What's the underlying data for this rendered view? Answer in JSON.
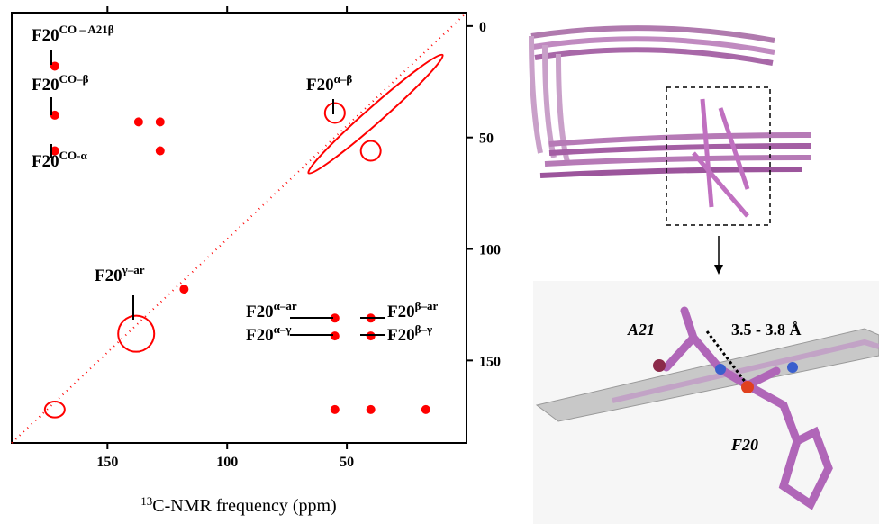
{
  "chart_data": {
    "type": "contour",
    "xlabel": {
      "sup": "13",
      "text": "C-NMR frequency (ppm)"
    },
    "xlim": [
      190,
      0
    ],
    "ylim": [
      -6,
      187
    ],
    "xticks": [
      150,
      100,
      50
    ],
    "yticks": [
      0,
      50,
      100,
      150
    ],
    "color": "#ff0000",
    "peaks": {
      "x": [
        172,
        172,
        172,
        137,
        128,
        128,
        55,
        40,
        138,
        55,
        40,
        55,
        40,
        55,
        40,
        17,
        172,
        118
      ],
      "y": [
        18,
        40,
        56,
        43,
        43,
        56,
        39,
        56,
        138,
        131,
        131,
        139,
        139,
        172,
        172,
        172,
        172,
        118
      ]
    },
    "diagonal_ridge": {
      "x": [
        66,
        10
      ],
      "y": [
        66,
        13
      ]
    },
    "annotations": [
      {
        "text": "F20",
        "sup": "CO – A21β"
      },
      {
        "text": "F20",
        "sup": "CO–β"
      },
      {
        "text": "F20",
        "sup": "CO-α"
      },
      {
        "text": "F20",
        "sup": "α–β"
      },
      {
        "text": "F20",
        "sup": "γ–ar"
      },
      {
        "text": "F20",
        "sup": "α–ar"
      },
      {
        "text": "F20",
        "sup": "α–γ"
      },
      {
        "text": "F20",
        "sup": "β–ar"
      },
      {
        "text": "F20",
        "sup": "β–γ"
      }
    ]
  },
  "structure": {
    "residue_1": "A21",
    "distance": "3.5 - 3.8 Å",
    "residue_2": "F20"
  }
}
